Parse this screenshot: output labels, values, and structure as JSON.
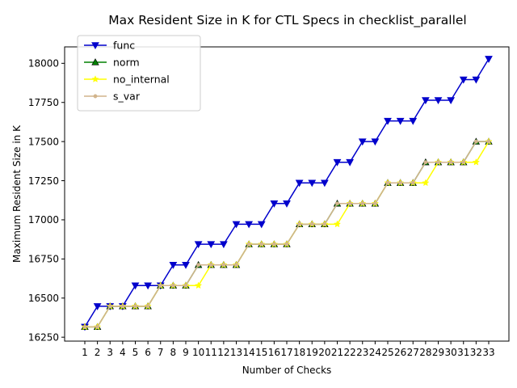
{
  "chart_data": {
    "type": "line",
    "title": "Max Resident Size in K for CTL Specs in checklist_parallel",
    "xlabel": "Number of Checks",
    "ylabel": "Maximum Resident Size in K",
    "x": [
      1,
      2,
      3,
      4,
      5,
      6,
      7,
      8,
      9,
      10,
      11,
      12,
      13,
      14,
      15,
      16,
      17,
      18,
      19,
      20,
      21,
      22,
      23,
      24,
      25,
      26,
      27,
      28,
      29,
      30,
      31,
      32,
      33
    ],
    "xlim": [
      -0.6,
      34.6
    ],
    "ylim": [
      16225,
      18105
    ],
    "yticks": [
      16250,
      16500,
      16750,
      17000,
      17250,
      17500,
      17750,
      18000
    ],
    "grid": false,
    "legend_position": "top-left",
    "series": [
      {
        "name": "func",
        "color": "#0000cc",
        "marker": "triangle-down",
        "values": [
          16316,
          16448,
          16448,
          16448,
          16580,
          16580,
          16580,
          16712,
          16712,
          16844,
          16844,
          16844,
          16972,
          16972,
          16972,
          17104,
          17104,
          17236,
          17236,
          17236,
          17368,
          17368,
          17500,
          17500,
          17632,
          17632,
          17632,
          17764,
          17764,
          17764,
          17896,
          17896,
          18028
        ]
      },
      {
        "name": "norm",
        "color": "#008000",
        "marker": "triangle-up",
        "values": [
          16316,
          16316,
          16448,
          16448,
          16448,
          16448,
          16580,
          16580,
          16580,
          16712,
          16712,
          16712,
          16712,
          16844,
          16844,
          16844,
          16844,
          16972,
          16972,
          16972,
          17104,
          17104,
          17104,
          17104,
          17236,
          17236,
          17236,
          17368,
          17368,
          17368,
          17368,
          17500,
          17500
        ]
      },
      {
        "name": "no_internal",
        "color": "#ffff00",
        "marker": "star",
        "values": [
          16316,
          16316,
          16448,
          16448,
          16448,
          16448,
          16580,
          16580,
          16580,
          16580,
          16712,
          16712,
          16712,
          16844,
          16844,
          16844,
          16844,
          16972,
          16972,
          16972,
          16972,
          17104,
          17104,
          17104,
          17236,
          17236,
          17236,
          17236,
          17368,
          17368,
          17368,
          17368,
          17500
        ]
      },
      {
        "name": "s_var",
        "color": "#d2b48c",
        "marker": "circle",
        "values": [
          16316,
          16316,
          16448,
          16448,
          16448,
          16448,
          16580,
          16580,
          16580,
          16712,
          16712,
          16712,
          16712,
          16844,
          16844,
          16844,
          16844,
          16972,
          16972,
          16972,
          17104,
          17104,
          17104,
          17104,
          17236,
          17236,
          17236,
          17368,
          17368,
          17368,
          17368,
          17500,
          17500
        ]
      }
    ]
  }
}
